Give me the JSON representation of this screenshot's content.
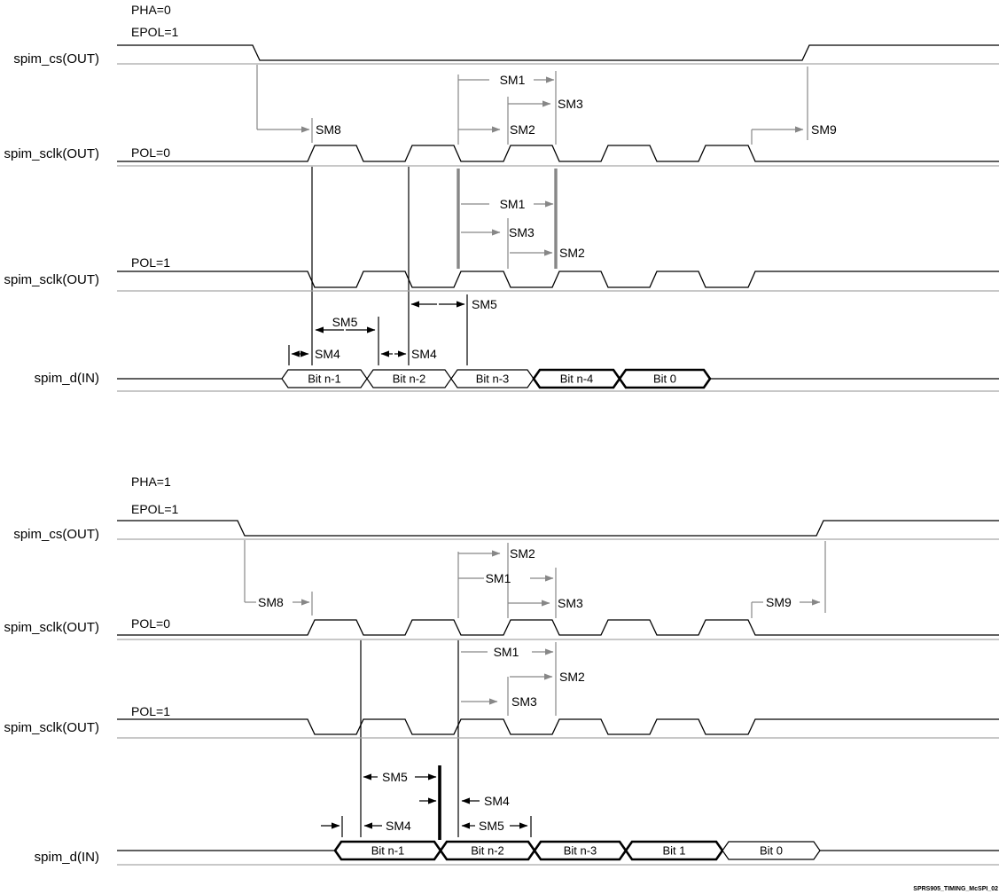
{
  "figure": {
    "footer_code": "SPRS905_TIMING_McSPI_02"
  },
  "colors": {
    "signal": "#000000",
    "reference_line": "#a8a8a8",
    "dimension_line": "#878787"
  },
  "diagrams": [
    {
      "id": "pha0",
      "pha_label": "PHA=0",
      "epol_label": "EPOL=1",
      "labels": {
        "cs": "spim_cs(OUT)",
        "sclk_pol0": "spim_sclk(OUT)",
        "sclk_pol1": "spim_sclk(OUT)",
        "data_in": "spim_d(IN)",
        "pol0_tag": "POL=0",
        "pol1_tag": "POL=1"
      },
      "dims": {
        "sm8": "SM8",
        "sm9": "SM9",
        "pol0_sm1": "SM1",
        "pol0_sm2": "SM2",
        "pol0_sm3": "SM3",
        "pol1_sm1": "SM1",
        "pol1_sm2": "SM2",
        "pol1_sm3": "SM3",
        "sm5_a": "SM5",
        "sm5_b": "SM5",
        "sm4_a": "SM4",
        "sm4_b": "SM4"
      },
      "bits": [
        {
          "label": "Bit n-1",
          "bold": false
        },
        {
          "label": "Bit n-2",
          "bold": false
        },
        {
          "label": "Bit n-3",
          "bold": false
        },
        {
          "label": "Bit n-4",
          "bold": true
        },
        {
          "label": "Bit 0",
          "bold": true
        }
      ]
    },
    {
      "id": "pha1",
      "pha_label": "PHA=1",
      "epol_label": "EPOL=1",
      "labels": {
        "cs": "spim_cs(OUT)",
        "sclk_pol0": "spim_sclk(OUT)",
        "sclk_pol1": "spim_sclk(OUT)",
        "data_in": "spim_d(IN)",
        "pol0_tag": "POL=0",
        "pol1_tag": "POL=1"
      },
      "dims": {
        "sm8": "SM8",
        "sm9": "SM9",
        "pol0_sm1": "SM1",
        "pol0_sm2": "SM2",
        "pol0_sm3": "SM3",
        "pol1_sm1": "SM1",
        "pol1_sm2": "SM2",
        "pol1_sm3": "SM3",
        "sm5_a": "SM5",
        "sm5_b": "SM5",
        "sm4_a": "SM4",
        "sm4_b": "SM4"
      },
      "bits": [
        {
          "label": "Bit n-1",
          "bold": true
        },
        {
          "label": "Bit n-2",
          "bold": true
        },
        {
          "label": "Bit n-3",
          "bold": true
        },
        {
          "label": "Bit 1",
          "bold": true
        },
        {
          "label": "Bit 0",
          "bold": false
        }
      ]
    }
  ]
}
